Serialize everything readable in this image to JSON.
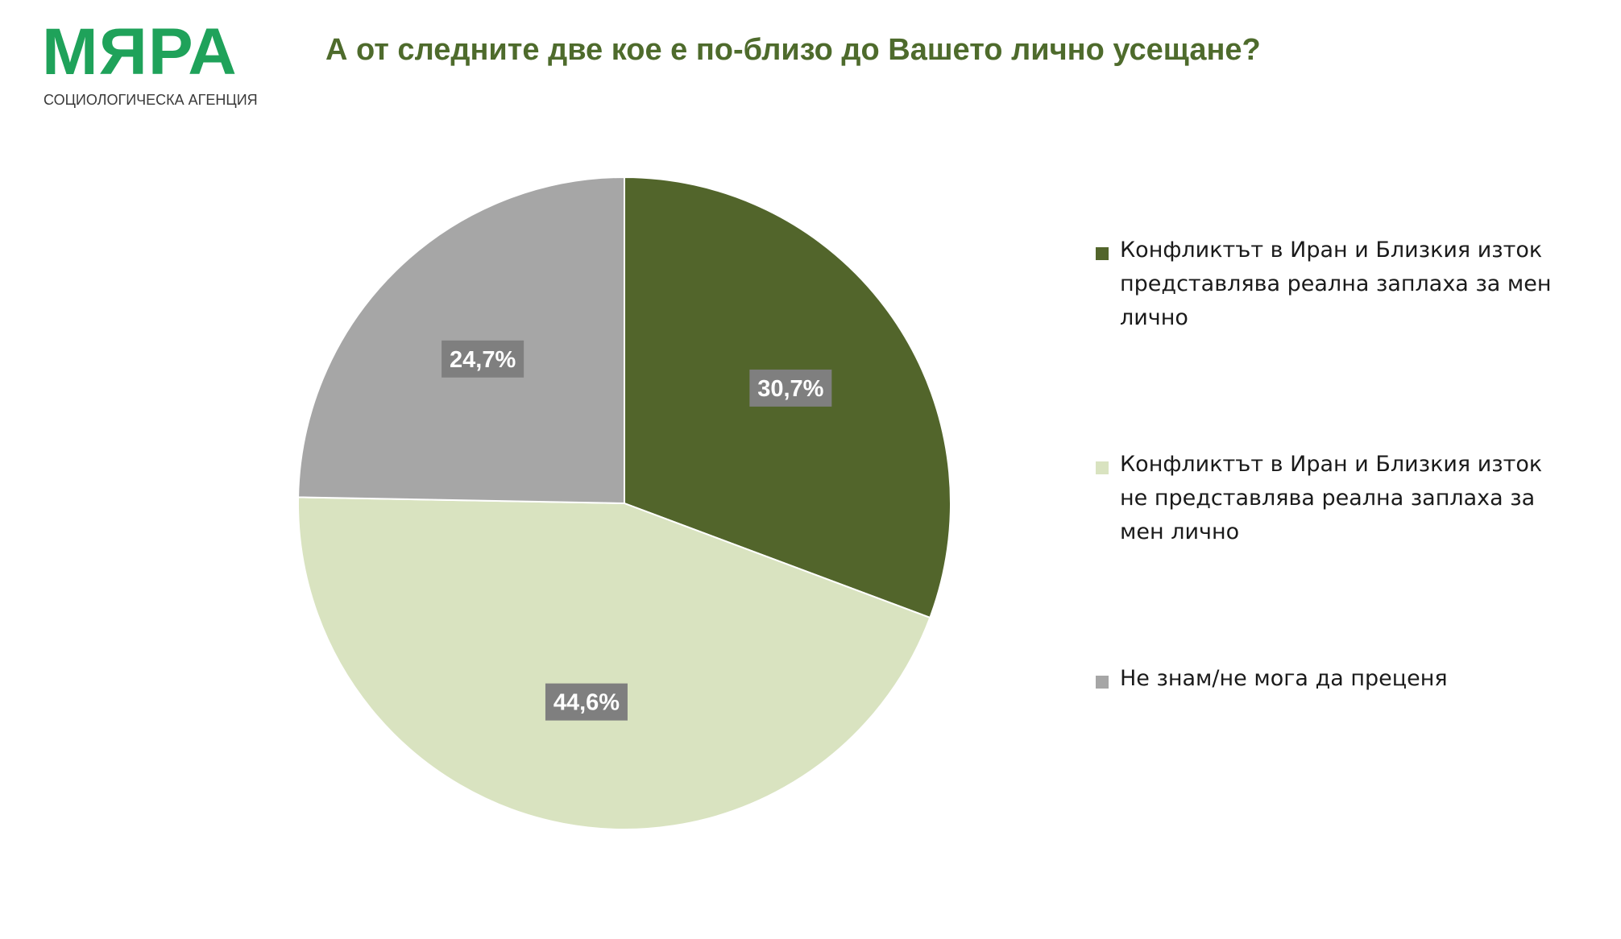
{
  "logo": {
    "word": "МЯРА",
    "subtitle": "СОЦИОЛОГИЧЕСКА АГЕНЦИЯ"
  },
  "chart_data": {
    "type": "pie",
    "title": "А от следните две кое е по-близо до Вашето лично усещане?",
    "categories": [
      "Конфликтът в Иран и Близкия изток представлява реална заплаха за мен лично",
      "Конфликтът в Иран и Близкия изток не представлява реална заплаха за мен лично",
      "Не знам/не мога да преценя"
    ],
    "values": [
      30.7,
      44.6,
      24.7
    ],
    "labels": [
      "30,7%",
      "44,6%",
      "24,7%"
    ],
    "colors": [
      "#52652b",
      "#d9e3c0",
      "#a6a6a6"
    ],
    "label_box_color": "#7f7f7f",
    "start_angle_deg": 0,
    "direction": "clockwise",
    "legend_position": "right"
  }
}
